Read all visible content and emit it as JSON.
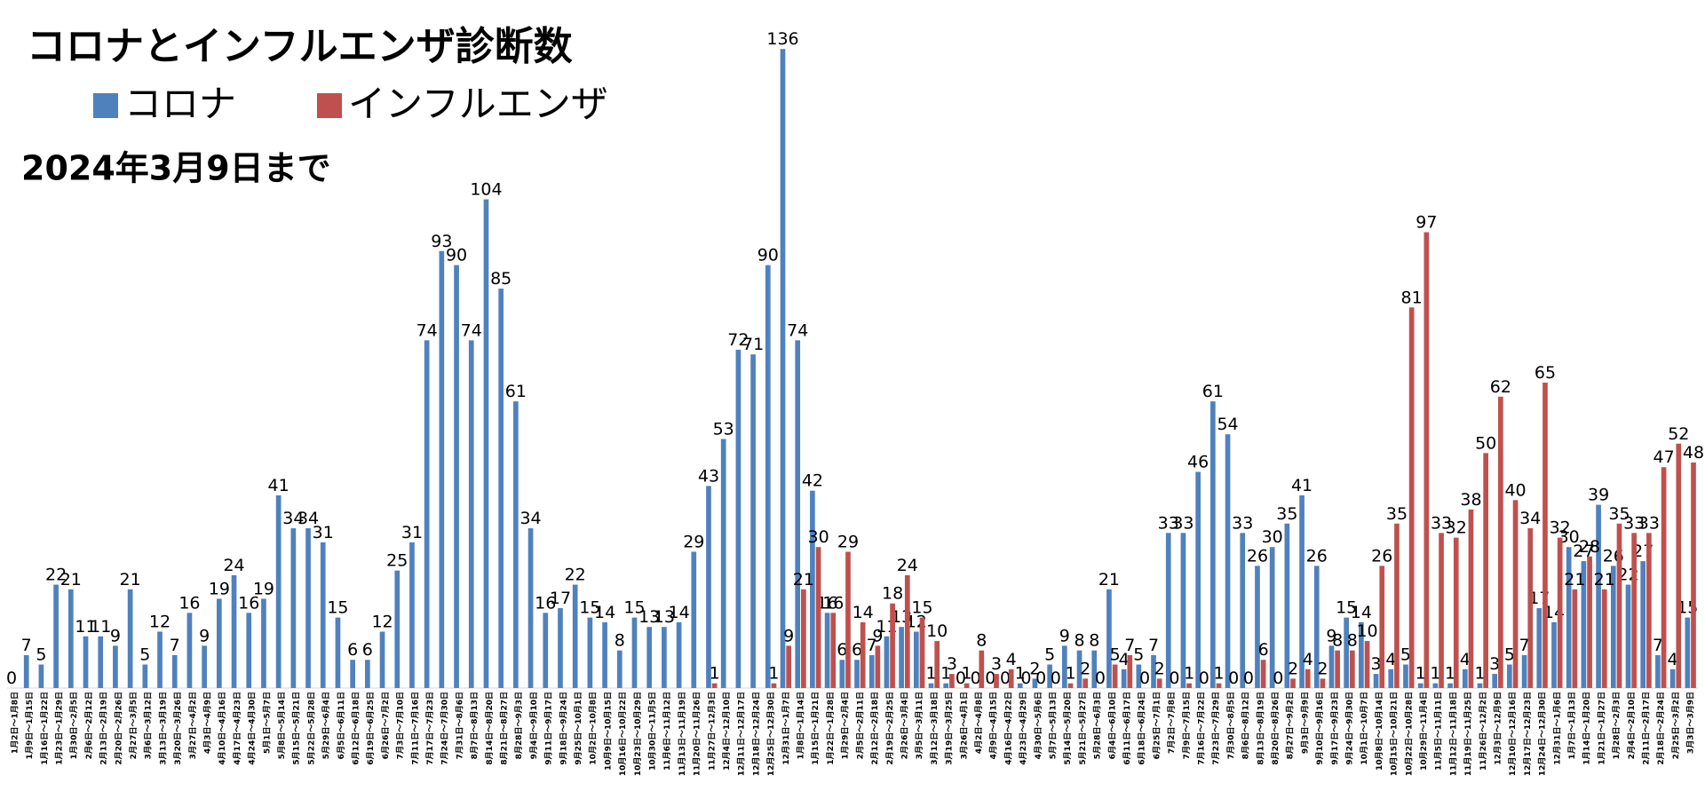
{
  "chart_data": {
    "type": "bar",
    "title": "コロナとインフルエンザ診断数",
    "subtitle": "2024年3月9日まで",
    "categories": [
      "1月2日〜1月8日",
      "1月9日〜1月15日",
      "1月16日〜1月22日",
      "1月23日〜1月29日",
      "1月30日〜2月5日",
      "2月6日〜2月12日",
      "2月13日〜2月19日",
      "2月20日〜2月26日",
      "2月27日〜3月5日",
      "3月6日〜3月12日",
      "3月13日〜3月19日",
      "3月20日〜3月26日",
      "3月27日〜4月2日",
      "4月3日〜4月9日",
      "4月10日〜4月16日",
      "4月17日〜4月23日",
      "4月24日〜4月30日",
      "5月1日〜5月7日",
      "5月8日〜5月14日",
      "5月15日〜5月21日",
      "5月22日〜5月28日",
      "5月29日〜6月4日",
      "6月5日〜6月11日",
      "6月12日〜6月18日",
      "6月19日〜6月25日",
      "6月26日〜7月2日",
      "7月3日〜7月10日",
      "7月11日〜7月16日",
      "7月17日〜7月23日",
      "7月24日〜7月30日",
      "7月31日〜8月6日",
      "8月7日〜8月13日",
      "8月14日〜8月20日",
      "8月21日〜8月27日",
      "8月28日〜9月3日",
      "9月4日〜9月10日",
      "9月11日〜9月17日",
      "9月18日〜9月24日",
      "9月25日〜10月1日",
      "10月2日〜10月8日",
      "10月9日〜10月15日",
      "10月16日〜10月22日",
      "10月23日〜10月29日",
      "10月30日〜11月5日",
      "11月6日〜11月12日",
      "11月13日〜11月19日",
      "11月20日〜11月26日",
      "11月27日〜12月3日",
      "12月4日〜12月10日",
      "12月11日〜12月17日",
      "12月18日〜12月24日",
      "12月25日〜12月30日",
      "12月31日〜1月7日",
      "1月8日〜1月14日",
      "1月15日〜1月21日",
      "1月22日〜1月28日",
      "1月29日〜2月4日",
      "2月5日〜2月11日",
      "2月12日〜2月18日",
      "2月19日〜2月25日",
      "2月26日〜3月4日",
      "3月5日〜3月11日",
      "3月12日〜3月18日",
      "3月19日〜3月25日",
      "3月26日〜4月1日",
      "4月2日〜4月8日",
      "4月9日〜4月15日",
      "4月16日〜4月22日",
      "4月23日〜4月29日",
      "4月30日〜5月6日",
      "5月7日〜5月13日",
      "5月14日〜5月20日",
      "5月21日〜5月27日",
      "5月28日〜6月3日",
      "6月4日〜6月10日",
      "6月11日〜6月17日",
      "6月18日〜6月24日",
      "6月25日〜7月1日",
      "7月2日〜7月8日",
      "7月9日〜7月15日",
      "7月16日〜7月22日",
      "7月23日〜7月29日",
      "7月30日〜8月5日",
      "8月6日〜8月12日",
      "8月13日〜8月19日",
      "8月20日〜8月26日",
      "8月27日〜9月2日",
      "9月3日〜9月9日",
      "9月10日〜9月16日",
      "9月17日〜9月23日",
      "9月24日〜9月30日",
      "10月1日〜10月7日",
      "10月8日〜10月14日",
      "10月15日〜10月21日",
      "10月22日〜10月28日",
      "10月29日〜11月4日",
      "11月5日〜11月11日",
      "11月12日〜11月18日",
      "11月19日〜11月25日",
      "11月26日〜12月2日",
      "12月3日〜12月9日",
      "12月10日〜12月16日",
      "12月17日〜12月23日",
      "12月24日〜12月30日",
      "12月31日〜1月6日",
      "1月7日〜1月13日",
      "1月14日〜1月20日",
      "1月21日〜1月27日",
      "1月28日〜2月3日",
      "2月4日〜2月10日",
      "2月11日〜2月17日",
      "2月18日〜2月24日",
      "2月25日〜3月2日",
      "3月3日〜3月9日"
    ],
    "series": [
      {
        "name": "コロナ",
        "color": "#4f81bd",
        "values": [
          0,
          7,
          5,
          22,
          21,
          11,
          11,
          9,
          21,
          5,
          12,
          7,
          16,
          9,
          19,
          24,
          16,
          19,
          41,
          34,
          34,
          31,
          15,
          6,
          6,
          12,
          25,
          31,
          74,
          93,
          90,
          74,
          104,
          85,
          61,
          34,
          16,
          17,
          22,
          15,
          14,
          8,
          15,
          13,
          13,
          14,
          29,
          43,
          53,
          72,
          71,
          90,
          136,
          74,
          42,
          16,
          6,
          6,
          7,
          11,
          13,
          12,
          1,
          1,
          0,
          0,
          0,
          0,
          1,
          2,
          5,
          9,
          8,
          8,
          21,
          4,
          5,
          7,
          33,
          33,
          46,
          61,
          54,
          33,
          26,
          30,
          35,
          41,
          26,
          9,
          15,
          14,
          3,
          4,
          5,
          1,
          1,
          1,
          4,
          1,
          3,
          5,
          7,
          17,
          14,
          30,
          27,
          39,
          26,
          22,
          27,
          7,
          4,
          15
        ]
      },
      {
        "name": "インフルエンザ",
        "color": "#c0504d",
        "values": [
          null,
          null,
          null,
          null,
          null,
          null,
          null,
          null,
          null,
          null,
          null,
          null,
          null,
          null,
          null,
          null,
          null,
          null,
          null,
          null,
          null,
          null,
          null,
          null,
          null,
          null,
          null,
          null,
          null,
          null,
          null,
          null,
          null,
          null,
          null,
          null,
          null,
          null,
          null,
          null,
          null,
          null,
          null,
          null,
          null,
          null,
          null,
          1,
          null,
          null,
          null,
          1,
          9,
          21,
          30,
          16,
          29,
          14,
          9,
          18,
          24,
          15,
          10,
          3,
          1,
          8,
          3,
          4,
          0,
          0,
          0,
          1,
          2,
          0,
          5,
          7,
          0,
          2,
          0,
          1,
          0,
          1,
          0,
          0,
          6,
          0,
          2,
          4,
          2,
          8,
          8,
          10,
          26,
          35,
          81,
          97,
          33,
          32,
          38,
          50,
          62,
          40,
          34,
          65,
          32,
          21,
          28,
          21,
          35,
          33,
          33,
          47,
          52,
          48
        ]
      }
    ],
    "ylim": [
      0,
      140
    ]
  }
}
